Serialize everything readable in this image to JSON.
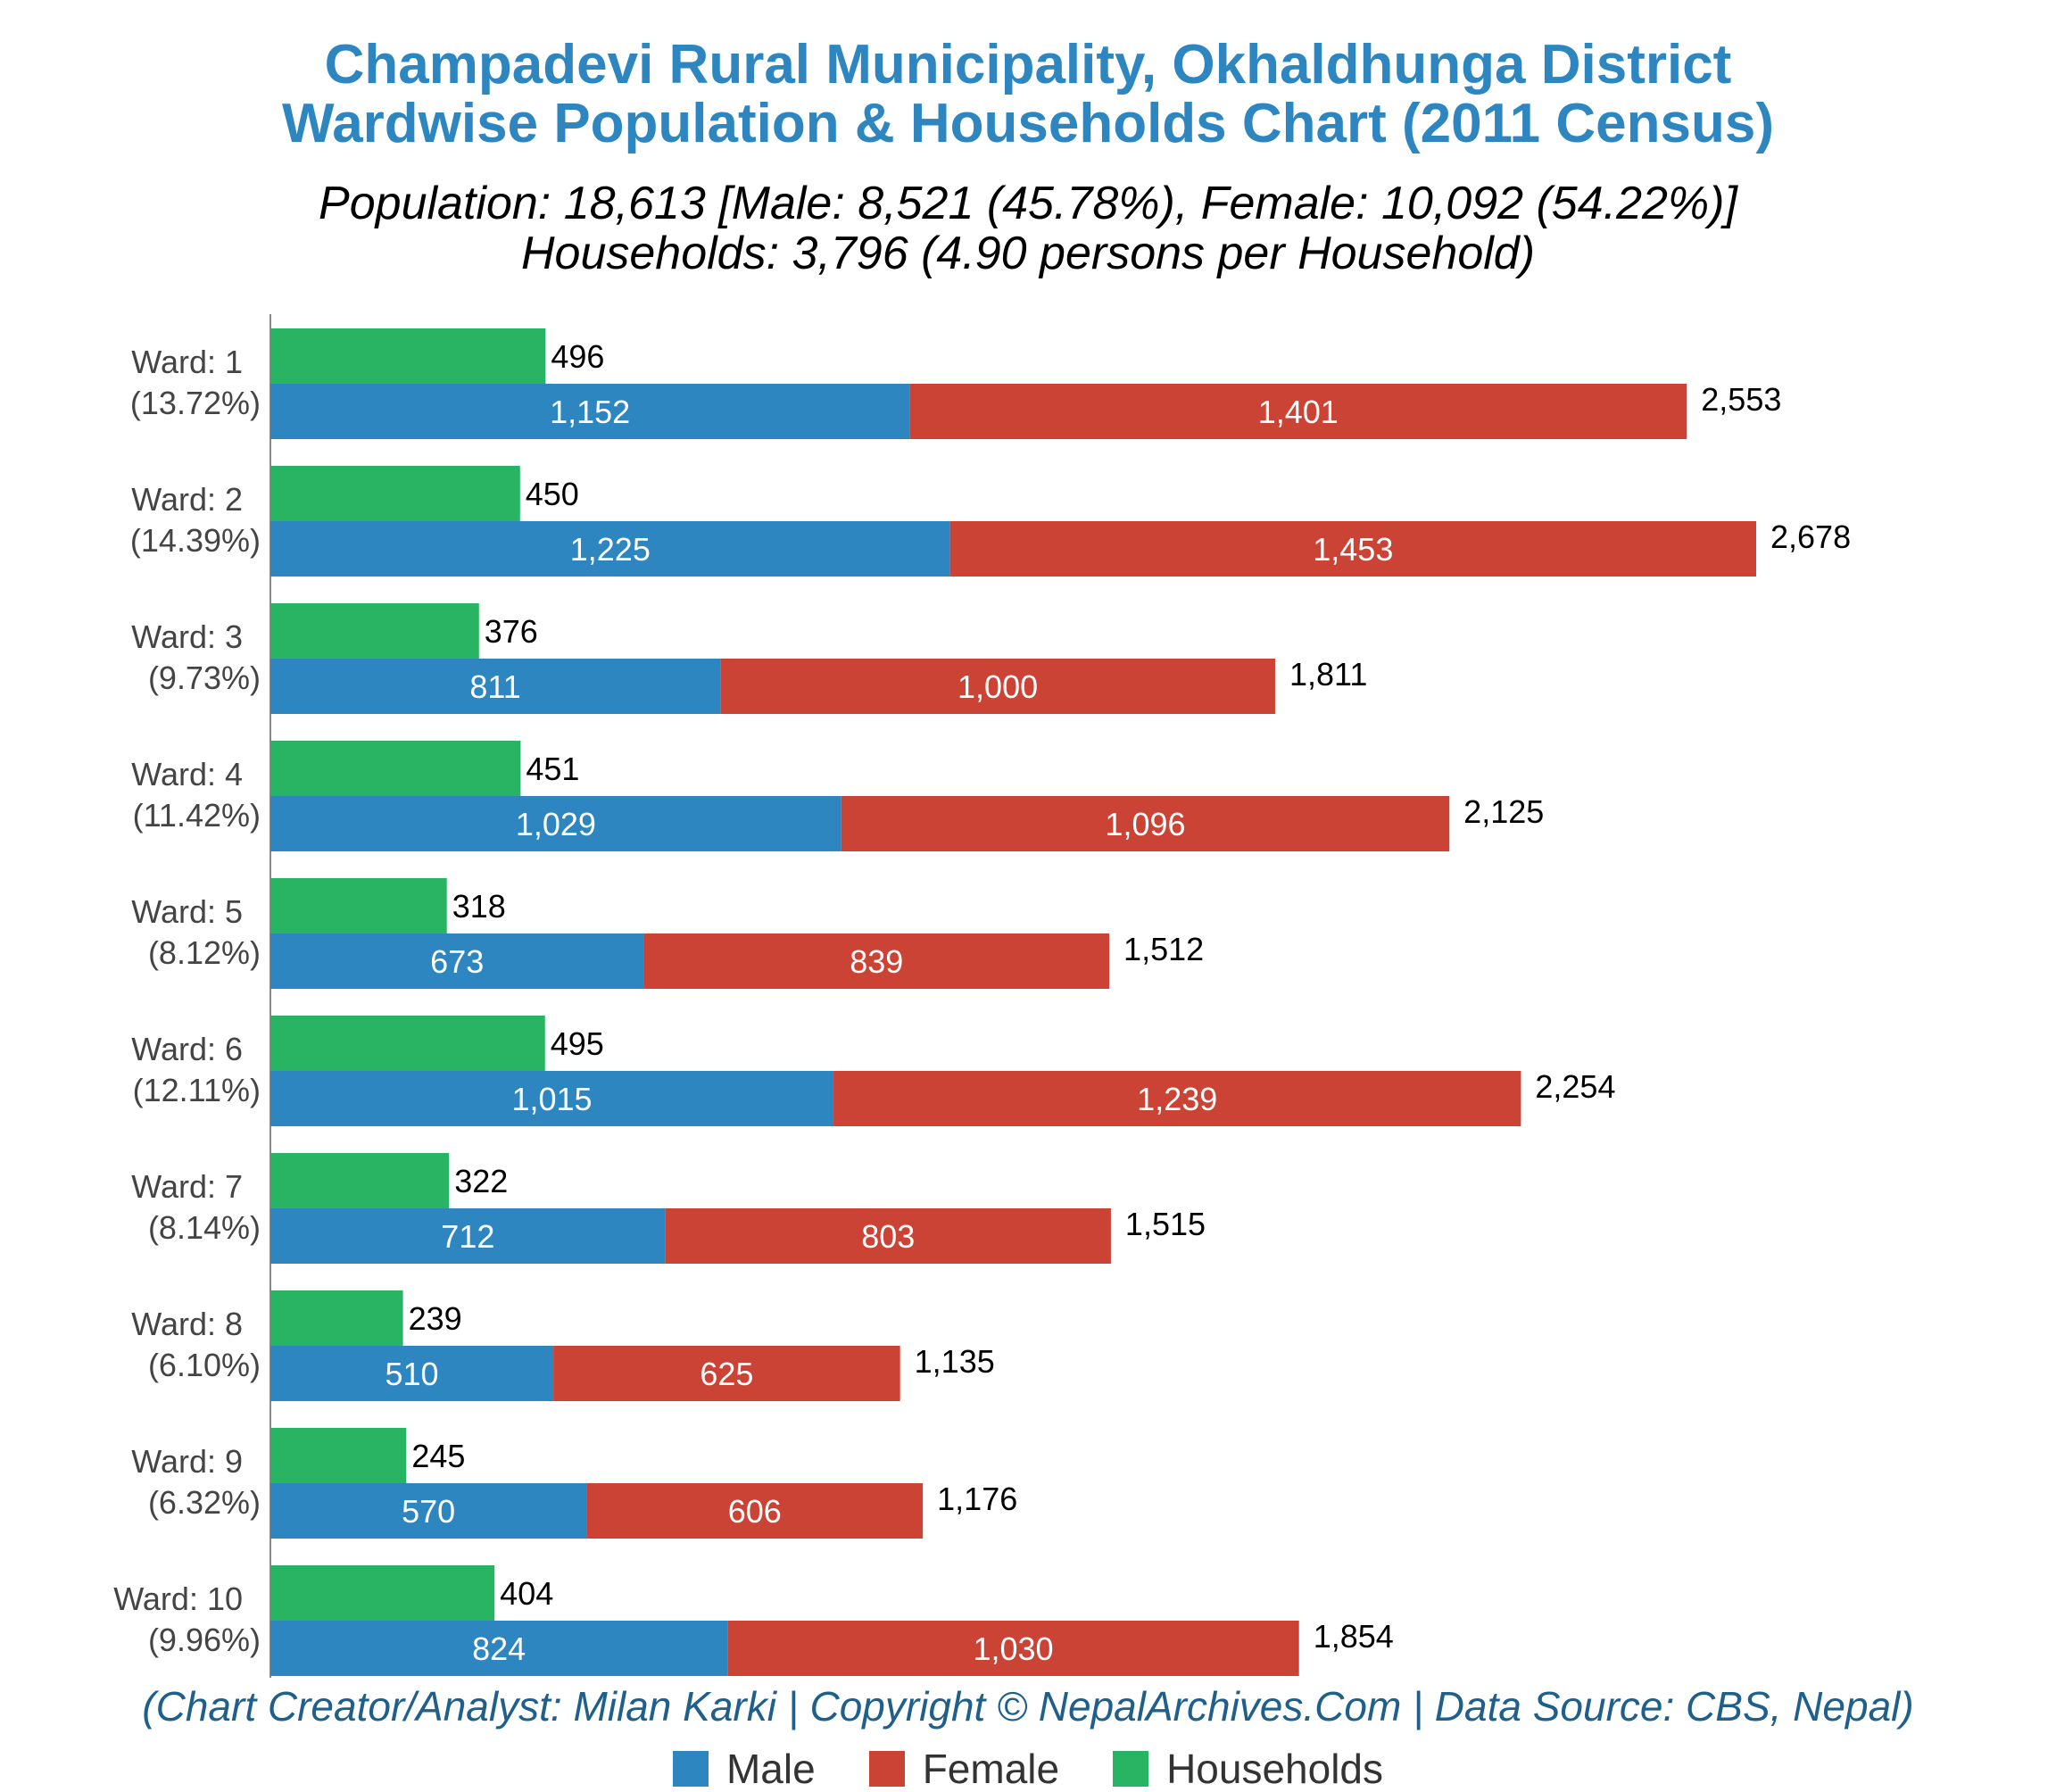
{
  "header": {
    "title_line1": "Champadevi Rural Municipality, Okhaldhunga District",
    "title_line2": "Wardwise Population & Households Chart (2011 Census)",
    "subtitle_line1": "Population: 18,613 [Male: 8,521 (45.78%), Female: 10,092 (54.22%)]",
    "subtitle_line2": "Households: 3,796 (4.90 persons per Household)"
  },
  "footer": {
    "credit": "(Chart Creator/Analyst: Milan Karki | Copyright © NepalArchives.Com | Data Source: CBS, Nepal)"
  },
  "colors": {
    "male": "#2e86c1",
    "female": "#cb4335",
    "households": "#28b463",
    "title": "#2e86c1"
  },
  "legend": {
    "male": "Male",
    "female": "Female",
    "households": "Households"
  },
  "chart_data": {
    "type": "bar",
    "orientation": "horizontal",
    "categories": [
      "Ward: 1",
      "Ward: 2",
      "Ward: 3",
      "Ward: 4",
      "Ward: 5",
      "Ward: 6",
      "Ward: 7",
      "Ward: 8",
      "Ward: 9",
      "Ward: 10"
    ],
    "category_percents": [
      "(13.72%)",
      "(14.39%)",
      "(9.73%)",
      "(11.42%)",
      "(8.12%)",
      "(12.11%)",
      "(8.14%)",
      "(6.10%)",
      "(6.32%)",
      "(9.96%)"
    ],
    "series": [
      {
        "name": "Male",
        "values": [
          1152,
          1225,
          811,
          1029,
          673,
          1015,
          712,
          510,
          570,
          824
        ]
      },
      {
        "name": "Female",
        "values": [
          1401,
          1453,
          1000,
          1096,
          839,
          1239,
          803,
          625,
          606,
          1030
        ]
      },
      {
        "name": "Households",
        "values": [
          496,
          450,
          376,
          451,
          318,
          495,
          322,
          239,
          245,
          404
        ]
      }
    ],
    "totals": [
      2553,
      2678,
      1811,
      2125,
      1512,
      2254,
      1515,
      1135,
      1176,
      1854
    ],
    "stacked": [
      "Male",
      "Female"
    ],
    "legend_position": "bottom",
    "grid": false
  }
}
